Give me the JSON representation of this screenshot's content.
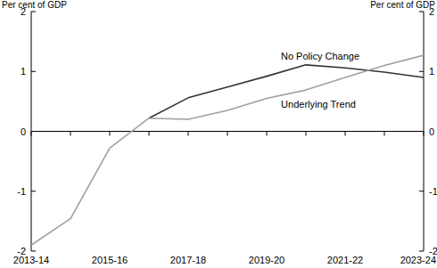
{
  "chart_data": {
    "type": "line",
    "ylabel": "Per cent of GDP",
    "y2label": "Per cent of GDP",
    "categories": [
      "2013-14",
      null,
      "2015-16",
      null,
      "2017-18",
      null,
      "2019-20",
      null,
      "2021-22",
      null,
      "2023-24"
    ],
    "series": [
      {
        "name": "No Policy Change",
        "color": "#333333",
        "values": [
          null,
          null,
          null,
          0.22,
          0.56,
          0.74,
          0.92,
          1.11,
          1.06,
          0.99,
          0.9
        ]
      },
      {
        "name": "Underlying Trend",
        "color": "#a0a0a0",
        "values": [
          -1.9,
          -1.46,
          -0.28,
          0.22,
          0.2,
          0.35,
          0.55,
          0.69,
          0.9,
          1.1,
          1.27
        ]
      }
    ],
    "ylim": [
      -2,
      2
    ],
    "yticks": [
      -2,
      -1,
      0,
      1,
      2
    ],
    "y2lim": [
      -2,
      2
    ],
    "y2ticks": [
      -2,
      -1,
      0,
      1,
      2
    ],
    "grid": false
  }
}
